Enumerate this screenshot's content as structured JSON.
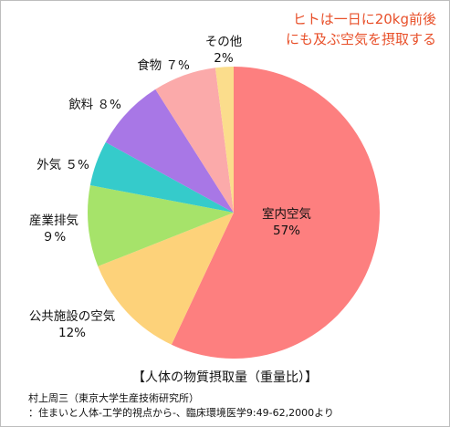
{
  "headline": {
    "line1": "ヒトは一日に20kg前後",
    "line2": "にも及ぶ空気を摂取する"
  },
  "chart_data": {
    "type": "pie",
    "title": "【人体の物質摂取量（重量比）】",
    "start": "12 o'clock",
    "direction": "clockwise",
    "slices": [
      {
        "label": "室内空気",
        "value_text": "57%",
        "value": 57,
        "color": "#fd7f7f",
        "label_position": "inside"
      },
      {
        "label": "公共施設の空気",
        "value_text": "12%",
        "value": 12,
        "color": "#fdd27a",
        "label_position": "outside"
      },
      {
        "label": "産業排気",
        "value_text": "９%",
        "value": 9,
        "color": "#a6e36a",
        "label_position": "outside"
      },
      {
        "label": "外気",
        "value_text": "５%",
        "value": 5,
        "color": "#35cbcb",
        "label_position": "outside"
      },
      {
        "label": "飲料",
        "value_text": "８%",
        "value": 8,
        "color": "#a877e6",
        "label_position": "outside"
      },
      {
        "label": "食物",
        "value_text": "７%",
        "value": 7,
        "color": "#fbaaaa",
        "label_position": "outside"
      },
      {
        "label": "その他",
        "value_text": "2%",
        "value": 2,
        "color": "#fbdd8c",
        "label_position": "outside"
      }
    ]
  },
  "source": {
    "line1": "村上周三（東京大学生産技術研究所）",
    "line2": "：住まいと人体-工学的視点から-、臨床環境医学9:49-62,2000より"
  }
}
